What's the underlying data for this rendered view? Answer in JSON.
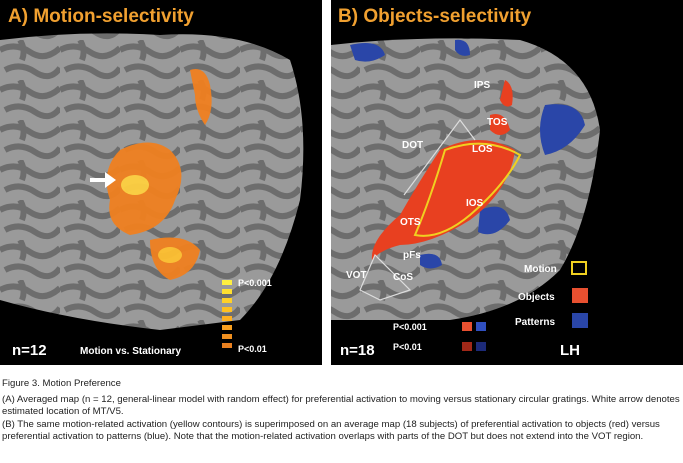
{
  "panels": [
    {
      "title": "A) Motion-selectivity",
      "n": "n=12",
      "contrast": "Motion vs. Stationary",
      "scale": [
        "P<0.001",
        "P<0.01"
      ]
    },
    {
      "title": "B) Objects-selectivity",
      "n": "n=18",
      "labels": [
        "IPS",
        "TOS",
        "DOT",
        "LOS",
        "IOS",
        "OTS",
        "pFs",
        "VOT",
        "CoS"
      ],
      "legend": [
        "Motion",
        "Objects",
        "Patterns"
      ],
      "scale": [
        "P<0.001",
        "P<0.01"
      ],
      "hemisphere": "LH"
    }
  ],
  "caption": {
    "title": "Figure 3.  Motion Preference",
    "paragraphs": [
      "(A) Averaged map (n = 12, general-linear model with random effect) for preferential activation to moving versus stationary circular gratings. White arrow denotes estimated location of MT/V5.",
      "(B) The same motion-related activation (yellow contours) is superimposed on an average map (18 subjects) of preferential activation to objects (red) versus preferential activation to patterns (blue). Note that the motion-related activation overlaps with parts of the DOT but does not extend into the VOT region."
    ]
  }
}
